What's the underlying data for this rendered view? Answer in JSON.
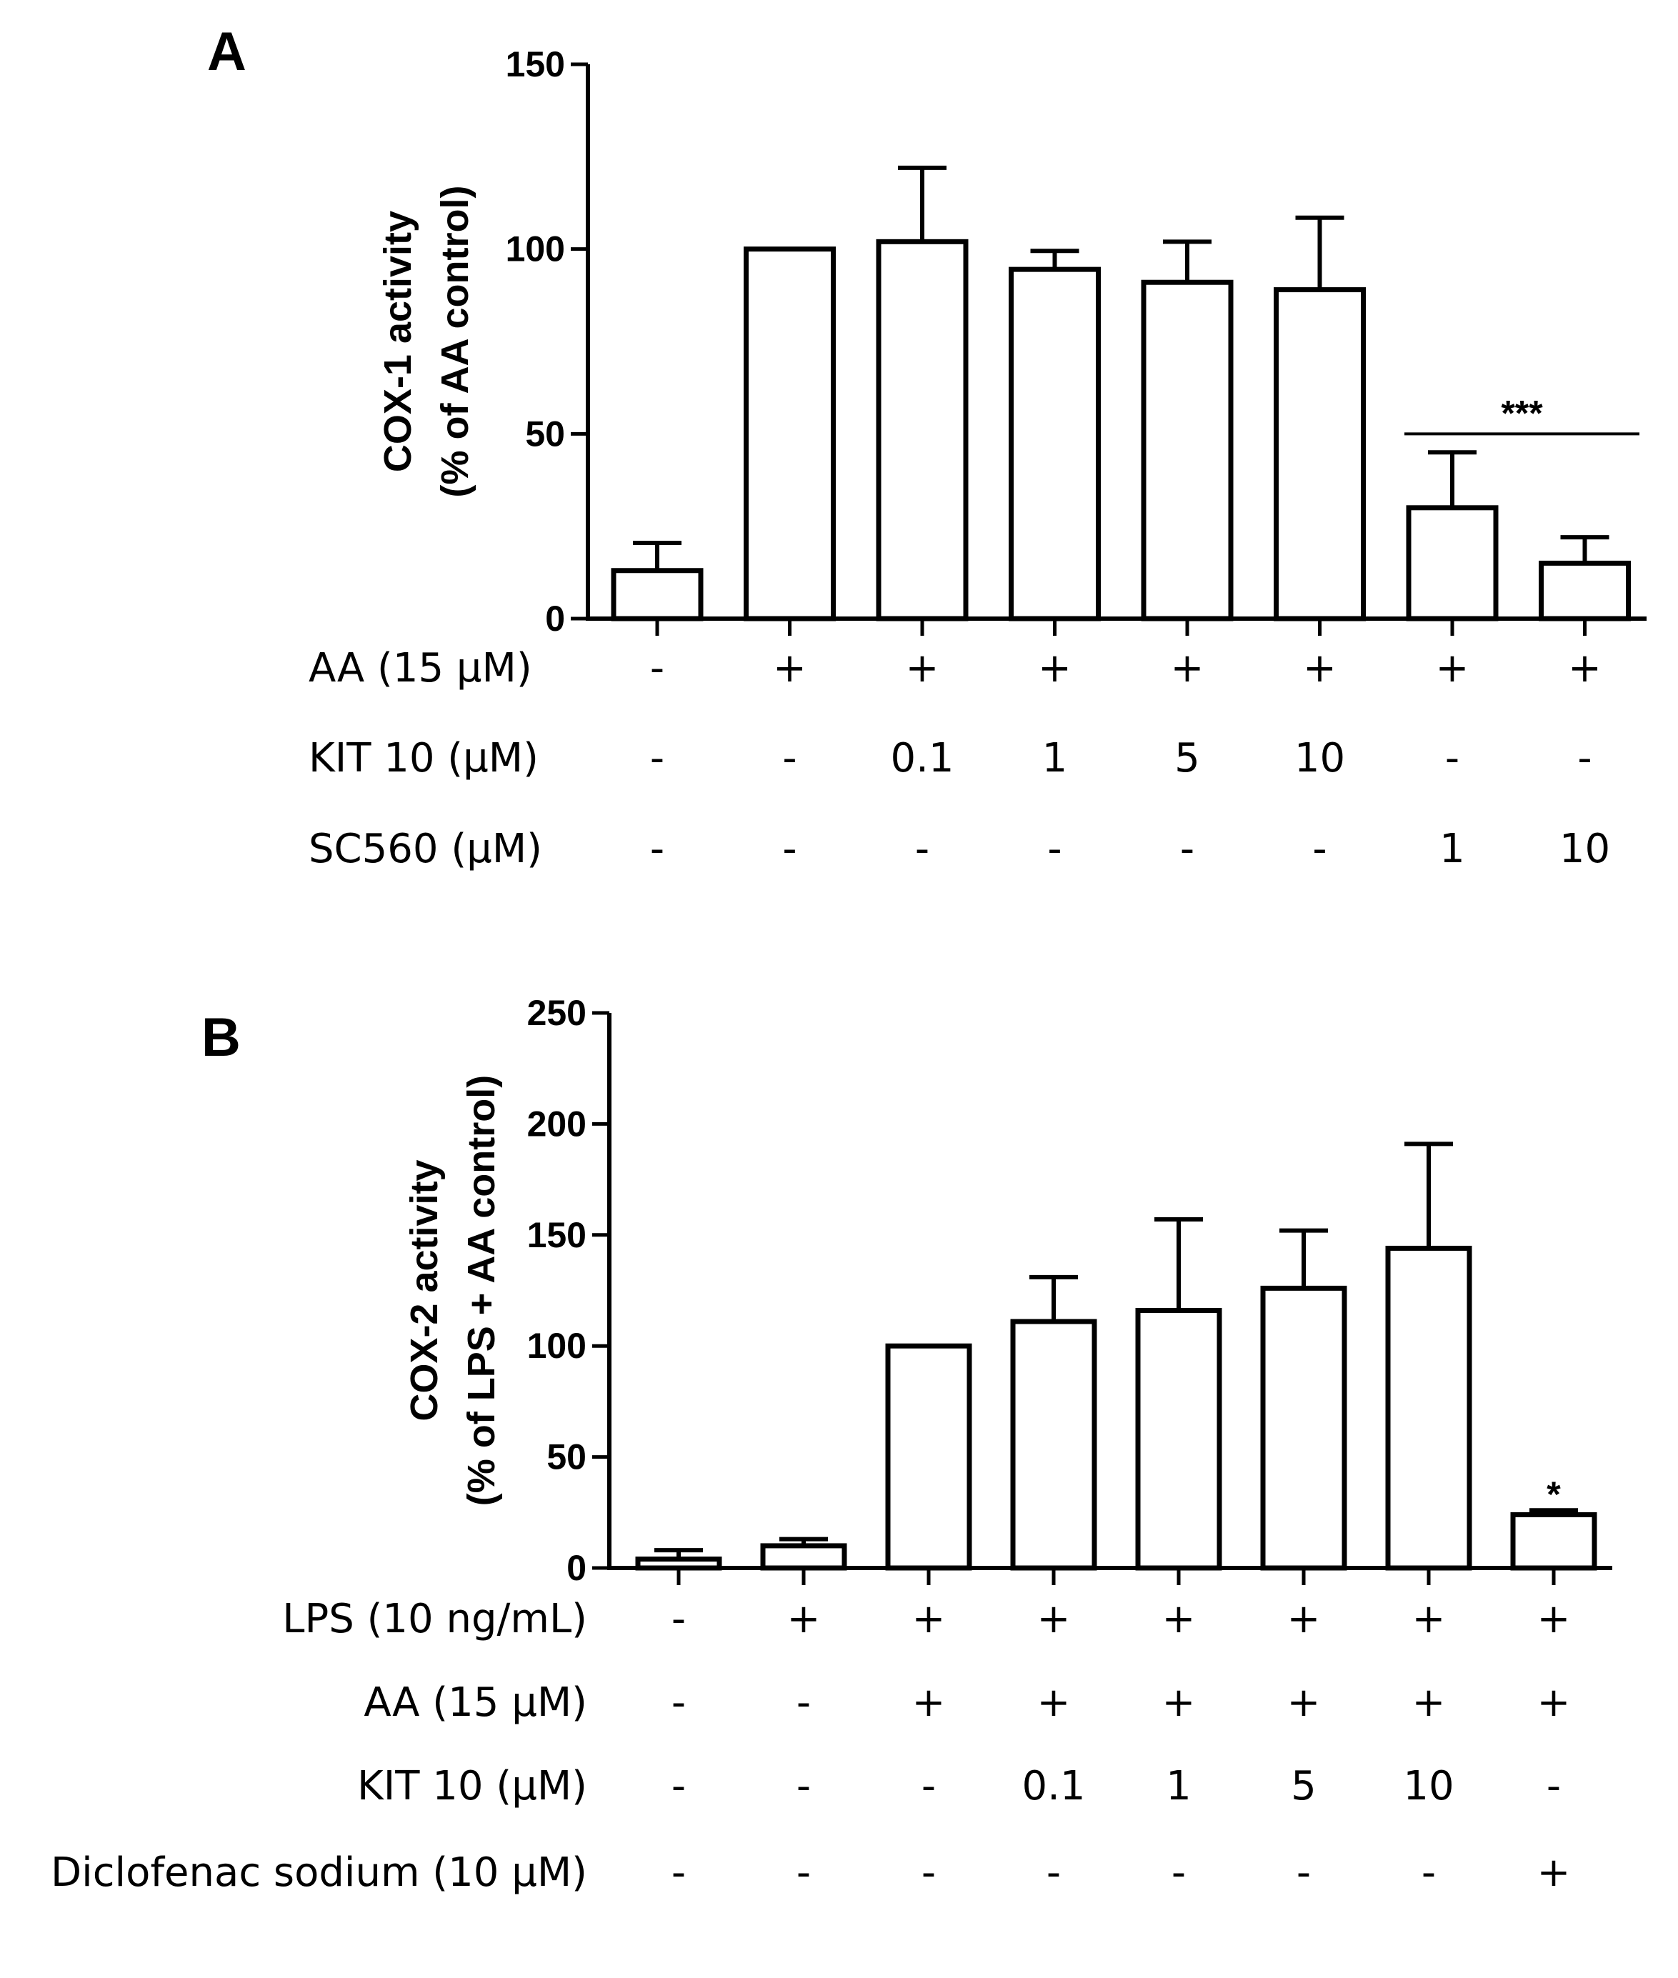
{
  "chart_data": [
    {
      "panel": "A",
      "type": "bar",
      "ylabel_line1": "COX-1 activity",
      "ylabel_line2": "(% of AA control)",
      "ylim": [
        0,
        150
      ],
      "yticks": [
        "0",
        "50",
        "100",
        "150"
      ],
      "values": [
        13,
        100,
        102,
        94.5,
        91,
        89,
        30,
        15
      ],
      "errors": [
        7.5,
        0,
        20,
        5,
        11,
        19.5,
        15,
        7
      ],
      "conditions": [
        {
          "label": "AA (15 μM)",
          "values": [
            "-",
            "+",
            "+",
            "+",
            "+",
            "+",
            "+",
            "+"
          ]
        },
        {
          "label": "KIT 10 (μM)",
          "values": [
            "-",
            "-",
            "0.1",
            "1",
            "5",
            "10",
            "-",
            "-"
          ]
        },
        {
          "label": "SC560 (μM)",
          "values": [
            "-",
            "-",
            "-",
            "-",
            "-",
            "-",
            "1",
            "10"
          ]
        }
      ],
      "significance": {
        "label": "***",
        "bars": [
          6,
          7
        ],
        "level": 50
      }
    },
    {
      "panel": "B",
      "type": "bar",
      "ylabel_line1": "COX-2 activity",
      "ylabel_line2": "(% of LPS + AA control)",
      "ylim": [
        0,
        250
      ],
      "yticks": [
        "0",
        "50",
        "100",
        "150",
        "200",
        "250"
      ],
      "values": [
        4,
        10,
        100,
        111,
        116,
        126,
        144,
        24
      ],
      "errors": [
        4,
        3,
        0,
        20,
        41,
        26,
        47,
        2
      ],
      "conditions": [
        {
          "label": "LPS (10 ng/mL)",
          "values": [
            "-",
            "+",
            "+",
            "+",
            "+",
            "+",
            "+",
            "+"
          ]
        },
        {
          "label": "AA (15 μM)",
          "values": [
            "-",
            "-",
            "+",
            "+",
            "+",
            "+",
            "+",
            "+"
          ]
        },
        {
          "label": "KIT 10 (μM)",
          "values": [
            "-",
            "-",
            "-",
            "0.1",
            "1",
            "5",
            "10",
            "-"
          ]
        },
        {
          "label": "Diclofenac sodium (10 μM)",
          "values": [
            "-",
            "-",
            "-",
            "-",
            "-",
            "-",
            "-",
            "+"
          ]
        }
      ],
      "significance": {
        "label": "*",
        "bars": [
          7
        ]
      }
    }
  ]
}
